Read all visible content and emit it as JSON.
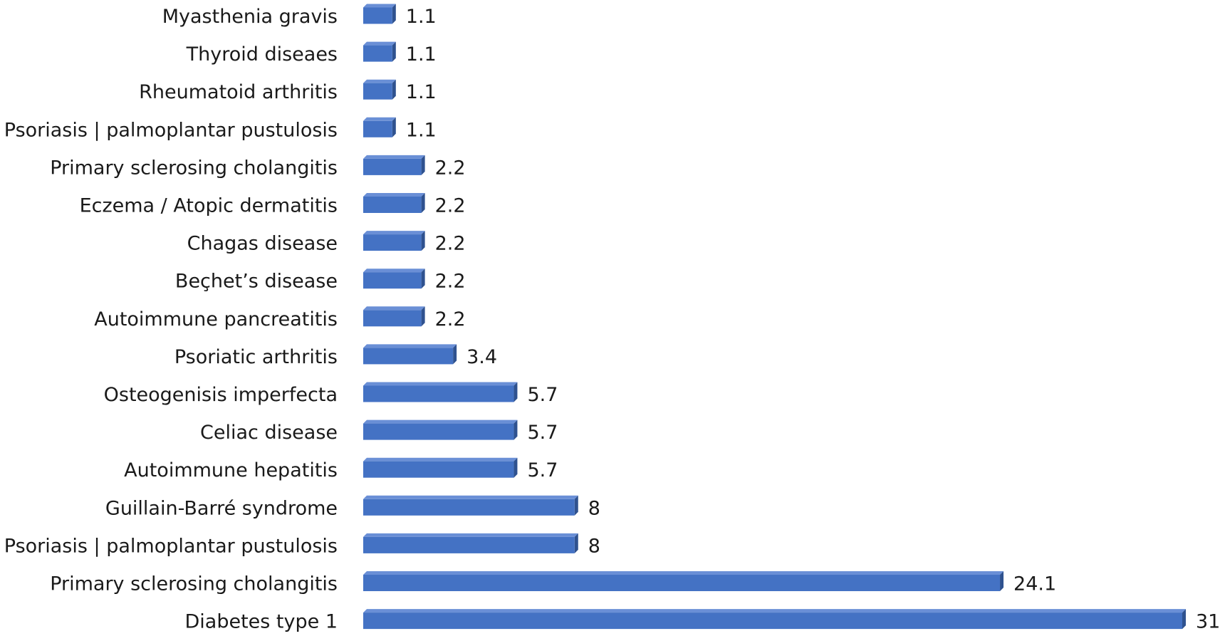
{
  "chart_data": {
    "type": "bar",
    "orientation": "horizontal",
    "style": "3d-bar",
    "categories": [
      "Myasthenia gravis",
      "Thyroid diseaes",
      "Rheumatoid arthritis",
      "Psoriasis | palmoplantar pustulosis",
      "Primary sclerosing cholangitis",
      "Eczema / Atopic dermatitis",
      "Chagas disease",
      "Beçhet’s disease",
      "Autoimmune pancreatitis",
      "Psoriatic arthritis",
      "Osteogenisis imperfecta",
      "Celiac disease",
      "Autoimmune hepatitis",
      "Guillain-Barré syndrome",
      "Psoriasis | palmoplantar pustulosis",
      "Primary sclerosing cholangitis",
      "Diabetes type 1"
    ],
    "values": [
      1.1,
      1.1,
      1.1,
      1.1,
      2.2,
      2.2,
      2.2,
      2.2,
      2.2,
      3.4,
      5.7,
      5.7,
      5.7,
      8,
      8,
      24.1,
      31
    ],
    "data_labels": [
      "1.1",
      "1.1",
      "1.1",
      "1.1",
      "2.2",
      "2.2",
      "2.2",
      "2.2",
      "2.2",
      "3.4",
      "5.7",
      "5.7",
      "5.7",
      "8",
      "8",
      "24.1",
      "31"
    ],
    "title": "",
    "xlabel": "",
    "ylabel": "",
    "xlim": [
      0,
      31
    ],
    "grid": false,
    "legend": "none",
    "colors": {
      "bar_front": "#4472c4",
      "bar_top": "#6a8fd6",
      "bar_side": "#2f528f",
      "label_text": "#1a1a1a"
    }
  }
}
